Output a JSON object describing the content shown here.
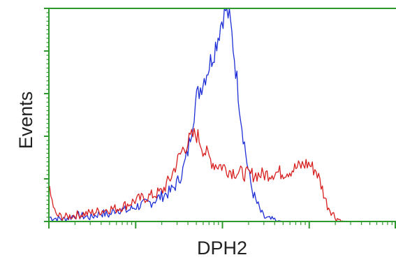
{
  "chart_data": {
    "type": "line",
    "title": "",
    "xlabel": "DPH2",
    "ylabel": "Events",
    "x_scale": "log",
    "xlim": [
      1,
      10000
    ],
    "ylim": [
      0,
      100
    ],
    "grid": false,
    "legend": "none",
    "colors": {
      "frame": "#2e9a2e",
      "series_blue": "#1f2fd6",
      "series_red": "#d81f1f"
    },
    "series": [
      {
        "color": "#1f2fd6",
        "x": [
          1,
          1.5,
          2,
          3,
          4,
          5,
          6,
          8,
          10,
          15,
          20,
          25,
          30,
          35,
          40,
          45,
          50,
          60,
          70,
          80,
          90,
          100,
          110,
          120,
          130,
          140,
          150,
          160,
          170,
          180,
          190,
          200,
          220,
          240,
          260,
          280,
          300,
          350,
          400,
          450,
          500,
          550,
          600,
          700,
          800,
          900,
          1000
        ],
        "y": [
          2,
          1,
          3,
          2,
          4,
          3,
          6,
          5,
          7,
          9,
          12,
          14,
          18,
          24,
          33,
          46,
          58,
          66,
          73,
          80,
          88,
          96,
          100,
          96,
          86,
          74,
          63,
          52,
          43,
          36,
          29,
          23,
          15,
          10,
          7,
          4,
          2,
          1,
          0.6,
          0.3,
          0,
          0,
          0,
          0,
          0,
          0,
          0
        ]
      },
      {
        "color": "#d81f1f",
        "x": [
          1,
          1.2,
          1.5,
          2,
          3,
          4,
          5,
          6,
          8,
          10,
          15,
          20,
          25,
          30,
          35,
          40,
          45,
          50,
          55,
          60,
          70,
          80,
          100,
          120,
          150,
          200,
          250,
          300,
          400,
          500,
          600,
          700,
          800,
          900,
          1000,
          1100,
          1200,
          1300,
          1400,
          1500,
          1600,
          1800,
          2000,
          2200,
          2500,
          3000
        ],
        "y": [
          15,
          3,
          2,
          3,
          4,
          5,
          6,
          6,
          8,
          10,
          12,
          14,
          20,
          28,
          34,
          37,
          40,
          41,
          38,
          34,
          30,
          27,
          26,
          24,
          23,
          22,
          22,
          22,
          23,
          23,
          24,
          25,
          26,
          27,
          27,
          25,
          24,
          20,
          16,
          12,
          8,
          5,
          2,
          1,
          0,
          0
        ]
      }
    ]
  }
}
